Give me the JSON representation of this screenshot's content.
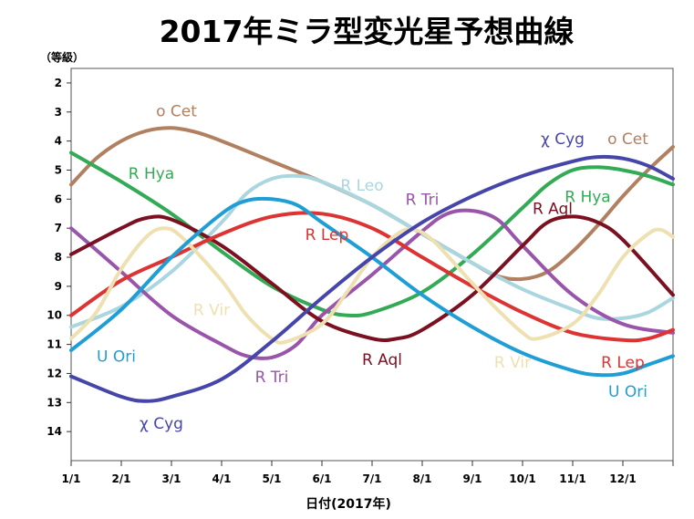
{
  "chart_data": {
    "type": "line",
    "title": "2017年ミラ型変光星予想曲線",
    "ylabel": "（等級）",
    "xlabel": "日付(2017年)",
    "ylim": [
      1.5,
      15
    ],
    "y_inverted": true,
    "yticks": [
      2,
      3,
      4,
      5,
      6,
      7,
      8,
      9,
      10,
      11,
      12,
      13,
      14
    ],
    "xlim": [
      1,
      13
    ],
    "x_ticks": [
      {
        "x": 1,
        "label": "1/1"
      },
      {
        "x": 2,
        "label": "2/1"
      },
      {
        "x": 3,
        "label": "3/1"
      },
      {
        "x": 4,
        "label": "4/1"
      },
      {
        "x": 5,
        "label": "5/1"
      },
      {
        "x": 6,
        "label": "6/1"
      },
      {
        "x": 7,
        "label": "7/1"
      },
      {
        "x": 8,
        "label": "8/1"
      },
      {
        "x": 9,
        "label": "9/1"
      },
      {
        "x": 10,
        "label": "10/1"
      },
      {
        "x": 11,
        "label": "11/1"
      },
      {
        "x": 12,
        "label": "12/1"
      }
    ],
    "x_unit": "month (1 = 1/1)",
    "series": [
      {
        "name": "o Cet",
        "color": "#b08060",
        "points": [
          [
            1,
            5.5
          ],
          [
            1.5,
            4.6
          ],
          [
            2,
            4.0
          ],
          [
            2.5,
            3.65
          ],
          [
            3,
            3.55
          ],
          [
            3.5,
            3.7
          ],
          [
            4,
            4.0
          ],
          [
            5,
            4.7
          ],
          [
            6,
            5.4
          ],
          [
            7,
            6.2
          ],
          [
            8,
            7.2
          ],
          [
            9,
            8.2
          ],
          [
            9.5,
            8.65
          ],
          [
            10,
            8.75
          ],
          [
            10.5,
            8.5
          ],
          [
            11,
            7.8
          ],
          [
            11.5,
            6.9
          ],
          [
            12,
            5.9
          ],
          [
            12.5,
            5.0
          ],
          [
            13,
            4.2
          ]
        ],
        "labels": [
          {
            "text": "o Cet",
            "x": 3.1,
            "y": 3.15
          },
          {
            "text": "o Cet",
            "x": 12.1,
            "y": 4.1
          }
        ]
      },
      {
        "name": "R Hya",
        "color": "#33aa55",
        "points": [
          [
            1,
            4.4
          ],
          [
            2,
            5.4
          ],
          [
            3,
            6.5
          ],
          [
            4,
            7.8
          ],
          [
            5,
            9.0
          ],
          [
            6,
            9.8
          ],
          [
            6.5,
            10.0
          ],
          [
            7,
            9.9
          ],
          [
            8,
            9.2
          ],
          [
            9,
            7.9
          ],
          [
            10,
            6.3
          ],
          [
            10.5,
            5.5
          ],
          [
            11,
            5.0
          ],
          [
            11.5,
            4.9
          ],
          [
            12,
            5.0
          ],
          [
            12.5,
            5.2
          ],
          [
            13,
            5.5
          ]
        ],
        "labels": [
          {
            "text": "R Hya",
            "x": 2.6,
            "y": 5.3
          },
          {
            "text": "R Hya",
            "x": 11.3,
            "y": 6.1
          }
        ]
      },
      {
        "name": "R Leo",
        "color": "#aad6e0",
        "points": [
          [
            1,
            10.4
          ],
          [
            2,
            9.7
          ],
          [
            3,
            8.5
          ],
          [
            4,
            6.8
          ],
          [
            4.5,
            5.8
          ],
          [
            5,
            5.3
          ],
          [
            5.5,
            5.2
          ],
          [
            6,
            5.4
          ],
          [
            7,
            6.2
          ],
          [
            8,
            7.2
          ],
          [
            9,
            8.2
          ],
          [
            10,
            9.1
          ],
          [
            11,
            9.8
          ],
          [
            11.5,
            10.1
          ],
          [
            12,
            10.1
          ],
          [
            12.5,
            9.9
          ],
          [
            13,
            9.4
          ]
        ],
        "labels": [
          {
            "text": "R Leo",
            "x": 6.8,
            "y": 5.7
          }
        ]
      },
      {
        "name": "R Tri",
        "color": "#9955aa",
        "points": [
          [
            1,
            7.0
          ],
          [
            2,
            8.5
          ],
          [
            3,
            10.0
          ],
          [
            4,
            11.0
          ],
          [
            4.5,
            11.4
          ],
          [
            5,
            11.45
          ],
          [
            5.5,
            11.0
          ],
          [
            6,
            10.0
          ],
          [
            7,
            8.6
          ],
          [
            8,
            7.1
          ],
          [
            8.5,
            6.5
          ],
          [
            9,
            6.4
          ],
          [
            9.5,
            6.7
          ],
          [
            10,
            7.6
          ],
          [
            11,
            9.3
          ],
          [
            12,
            10.3
          ],
          [
            13,
            10.6
          ]
        ],
        "labels": [
          {
            "text": "R Tri",
            "x": 8.0,
            "y": 6.2
          },
          {
            "text": "R Tri",
            "x": 5.0,
            "y": 12.3
          }
        ]
      },
      {
        "name": "R Aql",
        "color": "#7a1020",
        "points": [
          [
            1,
            7.9
          ],
          [
            2,
            7.0
          ],
          [
            2.5,
            6.65
          ],
          [
            3,
            6.7
          ],
          [
            4,
            7.6
          ],
          [
            5,
            8.9
          ],
          [
            6,
            10.2
          ],
          [
            7,
            10.8
          ],
          [
            7.5,
            10.8
          ],
          [
            8,
            10.5
          ],
          [
            9,
            9.3
          ],
          [
            10,
            7.6
          ],
          [
            10.5,
            6.8
          ],
          [
            11,
            6.6
          ],
          [
            11.5,
            6.8
          ],
          [
            12,
            7.4
          ],
          [
            13,
            9.3
          ]
        ],
        "labels": [
          {
            "text": "R Aql",
            "x": 10.6,
            "y": 6.5
          },
          {
            "text": "R Aql",
            "x": 7.2,
            "y": 11.7
          }
        ]
      },
      {
        "name": "R Lep",
        "color": "#dd3333",
        "points": [
          [
            1,
            10.0
          ],
          [
            2,
            8.8
          ],
          [
            3,
            8.0
          ],
          [
            4,
            7.2
          ],
          [
            5,
            6.6
          ],
          [
            6,
            6.5
          ],
          [
            7,
            7.0
          ],
          [
            8,
            8.0
          ],
          [
            9,
            9.0
          ],
          [
            10,
            9.9
          ],
          [
            11,
            10.6
          ],
          [
            12,
            10.85
          ],
          [
            12.5,
            10.8
          ],
          [
            13,
            10.5
          ]
        ],
        "labels": [
          {
            "text": "R Lep",
            "x": 6.1,
            "y": 7.4
          },
          {
            "text": "R Lep",
            "x": 12.0,
            "y": 11.8
          }
        ]
      },
      {
        "name": "R Vir",
        "color": "#eee0b0",
        "points": [
          [
            1,
            10.8
          ],
          [
            1.5,
            9.9
          ],
          [
            2,
            8.4
          ],
          [
            2.5,
            7.3
          ],
          [
            2.85,
            7.0
          ],
          [
            3.2,
            7.3
          ],
          [
            4,
            8.8
          ],
          [
            4.5,
            10.0
          ],
          [
            5,
            10.8
          ],
          [
            5.3,
            10.9
          ],
          [
            6,
            10.3
          ],
          [
            6.5,
            9.2
          ],
          [
            7,
            8.0
          ],
          [
            7.5,
            7.2
          ],
          [
            7.8,
            7.05
          ],
          [
            8.2,
            7.4
          ],
          [
            9,
            8.9
          ],
          [
            9.5,
            9.8
          ],
          [
            10,
            10.6
          ],
          [
            10.3,
            10.8
          ],
          [
            11,
            10.3
          ],
          [
            11.5,
            9.3
          ],
          [
            12,
            8.0
          ],
          [
            12.5,
            7.2
          ],
          [
            12.75,
            7.05
          ],
          [
            13,
            7.3
          ]
        ],
        "labels": [
          {
            "text": "R Vir",
            "x": 3.8,
            "y": 10.0
          },
          {
            "text": "R Vir",
            "x": 9.8,
            "y": 11.8
          }
        ]
      },
      {
        "name": "U Ori",
        "color": "#1f9ed6",
        "points": [
          [
            1,
            11.2
          ],
          [
            2,
            9.8
          ],
          [
            3,
            8.0
          ],
          [
            4,
            6.5
          ],
          [
            4.5,
            6.05
          ],
          [
            5,
            6.0
          ],
          [
            5.5,
            6.2
          ],
          [
            6,
            6.8
          ],
          [
            7,
            8.0
          ],
          [
            8,
            9.3
          ],
          [
            9,
            10.4
          ],
          [
            10,
            11.3
          ],
          [
            11,
            11.9
          ],
          [
            11.5,
            12.05
          ],
          [
            12,
            12.0
          ],
          [
            12.5,
            11.7
          ],
          [
            13,
            11.4
          ]
        ],
        "labels": [
          {
            "text": "U Ori",
            "x": 1.9,
            "y": 11.6
          },
          {
            "text": "U Ori",
            "x": 12.1,
            "y": 12.8
          }
        ]
      },
      {
        "name": "χ Cyg",
        "color": "#4646aa",
        "points": [
          [
            1,
            12.1
          ],
          [
            2,
            12.8
          ],
          [
            2.5,
            12.95
          ],
          [
            3,
            12.8
          ],
          [
            4,
            12.2
          ],
          [
            5,
            10.9
          ],
          [
            6,
            9.4
          ],
          [
            7,
            8.0
          ],
          [
            8,
            6.8
          ],
          [
            9,
            5.9
          ],
          [
            10,
            5.2
          ],
          [
            11,
            4.7
          ],
          [
            11.5,
            4.55
          ],
          [
            12,
            4.6
          ],
          [
            12.5,
            4.85
          ],
          [
            13,
            5.3
          ]
        ],
        "labels": [
          {
            "text": "χ Cyg",
            "x": 2.8,
            "y": 13.9
          },
          {
            "text": "χ Cyg",
            "x": 10.8,
            "y": 4.1
          }
        ]
      }
    ]
  }
}
